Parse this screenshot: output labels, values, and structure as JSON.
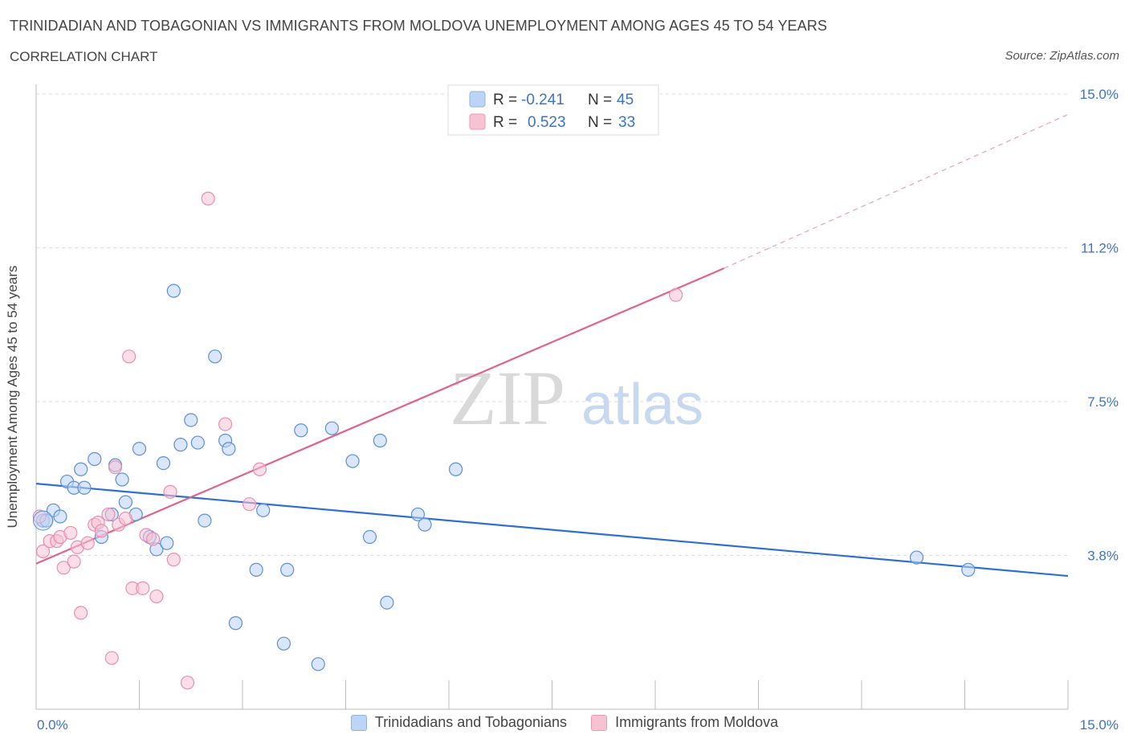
{
  "header": {
    "title": "TRINIDADIAN AND TOBAGONIAN VS IMMIGRANTS FROM MOLDOVA UNEMPLOYMENT AMONG AGES 45 TO 54 YEARS",
    "subtitle": "CORRELATION CHART",
    "source": "Source: ZipAtlas.com"
  },
  "watermark": {
    "zip": "ZIP",
    "atlas": "atlas"
  },
  "legend_top": [
    {
      "r_label": "R = ",
      "r_value": "-0.241",
      "n_label": "N = ",
      "n_value": "45"
    },
    {
      "r_label": "R = ",
      "r_value": "0.523",
      "n_label": "N = ",
      "n_value": "33"
    }
  ],
  "colors": {
    "blue": "#2f6fcf",
    "blue_fill": "#bcd4f6",
    "pink": "#e0628e",
    "pink_fill": "#f7c3d3",
    "value_text": "#3a74c9"
  },
  "chart_data": {
    "type": "scatter",
    "title": "TRINIDADIAN AND TOBAGONIAN VS IMMIGRANTS FROM MOLDOVA UNEMPLOYMENT AMONG AGES 45 TO 54 YEARS",
    "xlabel": "",
    "ylabel": "Unemployment Among Ages 45 to 54 years",
    "xlim": [
      0,
      15
    ],
    "ylim": [
      0,
      15
    ],
    "x_tick_labels": [
      "0.0%",
      "15.0%"
    ],
    "y_tick_labels": [
      "15.0%",
      "11.2%",
      "7.5%",
      "3.8%"
    ],
    "y_tick_values": [
      15.0,
      11.25,
      7.5,
      3.75
    ],
    "grid": true,
    "legend_position": "top-center and bottom",
    "series": [
      {
        "name": "Trinidadians and Tobagonians",
        "color": "#2f6fcf",
        "r": -0.241,
        "n": 45,
        "trend": [
          [
            0.0,
            5.5
          ],
          [
            15.0,
            3.25
          ]
        ],
        "points": [
          [
            0.1,
            4.6
          ],
          [
            0.25,
            4.85
          ],
          [
            0.35,
            4.7
          ],
          [
            0.45,
            5.55
          ],
          [
            0.55,
            5.4
          ],
          [
            0.65,
            5.85
          ],
          [
            0.7,
            5.4
          ],
          [
            0.85,
            6.1
          ],
          [
            0.95,
            4.2
          ],
          [
            1.1,
            4.75
          ],
          [
            1.15,
            5.95
          ],
          [
            1.25,
            5.6
          ],
          [
            1.3,
            5.05
          ],
          [
            1.45,
            4.75
          ],
          [
            1.5,
            6.35
          ],
          [
            1.65,
            4.2
          ],
          [
            1.75,
            3.9
          ],
          [
            1.85,
            6.0
          ],
          [
            1.9,
            4.05
          ],
          [
            2.0,
            10.2
          ],
          [
            2.1,
            6.45
          ],
          [
            2.25,
            7.05
          ],
          [
            2.35,
            6.5
          ],
          [
            2.45,
            4.6
          ],
          [
            2.6,
            8.6
          ],
          [
            2.75,
            6.55
          ],
          [
            2.8,
            6.35
          ],
          [
            2.9,
            2.1
          ],
          [
            3.2,
            3.4
          ],
          [
            3.3,
            4.85
          ],
          [
            3.6,
            1.6
          ],
          [
            3.65,
            3.4
          ],
          [
            3.85,
            6.8
          ],
          [
            4.1,
            1.1
          ],
          [
            4.3,
            6.85
          ],
          [
            4.6,
            6.05
          ],
          [
            4.85,
            4.2
          ],
          [
            5.0,
            6.55
          ],
          [
            5.1,
            2.6
          ],
          [
            5.55,
            4.75
          ],
          [
            5.65,
            4.5
          ],
          [
            6.1,
            5.85
          ],
          [
            12.8,
            3.7
          ],
          [
            13.55,
            3.4
          ],
          [
            0.15,
            4.6
          ]
        ]
      },
      {
        "name": "Immigrants from Moldova",
        "color": "#e0628e",
        "r": 0.523,
        "n": 33,
        "trend": [
          [
            0.0,
            3.55
          ],
          [
            10.0,
            10.75
          ]
        ],
        "trend_extension": [
          [
            10.0,
            10.75
          ],
          [
            15.0,
            14.5
          ]
        ],
        "points": [
          [
            0.05,
            4.7
          ],
          [
            0.1,
            3.85
          ],
          [
            0.2,
            4.1
          ],
          [
            0.3,
            4.1
          ],
          [
            0.35,
            4.2
          ],
          [
            0.4,
            3.45
          ],
          [
            0.5,
            4.3
          ],
          [
            0.55,
            3.6
          ],
          [
            0.6,
            3.95
          ],
          [
            0.65,
            2.35
          ],
          [
            0.75,
            4.05
          ],
          [
            0.85,
            4.5
          ],
          [
            0.9,
            4.55
          ],
          [
            0.95,
            4.35
          ],
          [
            1.05,
            4.75
          ],
          [
            1.1,
            1.25
          ],
          [
            1.15,
            5.9
          ],
          [
            1.2,
            4.5
          ],
          [
            1.3,
            4.65
          ],
          [
            1.35,
            8.6
          ],
          [
            1.4,
            2.95
          ],
          [
            1.55,
            2.95
          ],
          [
            1.6,
            4.25
          ],
          [
            1.7,
            4.15
          ],
          [
            1.75,
            2.75
          ],
          [
            1.95,
            5.3
          ],
          [
            2.0,
            3.65
          ],
          [
            2.2,
            0.65
          ],
          [
            2.5,
            12.45
          ],
          [
            2.75,
            6.95
          ],
          [
            3.1,
            5.0
          ],
          [
            3.25,
            5.85
          ],
          [
            9.3,
            10.1
          ]
        ]
      }
    ]
  },
  "bottom_legend": [
    {
      "label": "Trinidadians and Tobagonians"
    },
    {
      "label": "Immigrants from Moldova"
    }
  ]
}
